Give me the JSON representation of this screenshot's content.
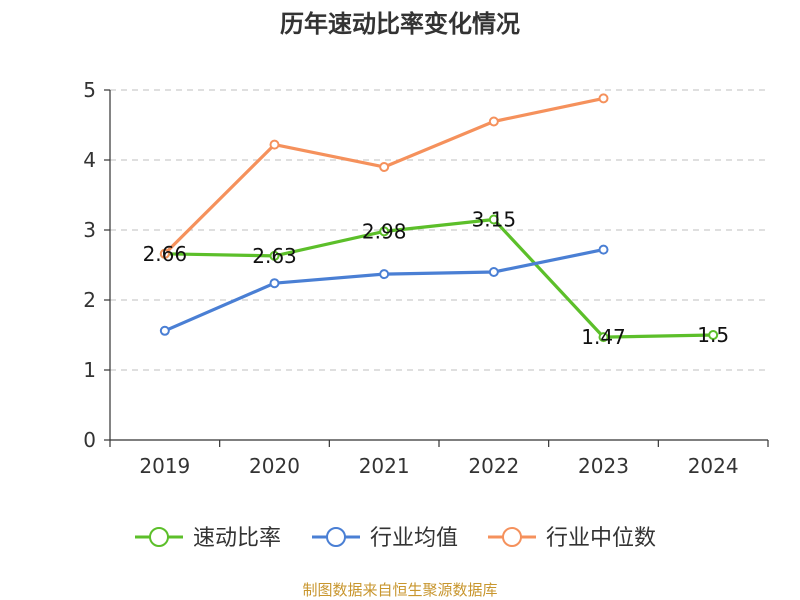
{
  "chart_data": {
    "type": "line",
    "title": "历年速动比率变化情况",
    "categories": [
      "2019",
      "2020",
      "2021",
      "2022",
      "2023",
      "2024"
    ],
    "ylim": [
      0,
      5
    ],
    "yticks": [
      "0",
      "1",
      "2",
      "3",
      "4",
      "5"
    ],
    "grid": true,
    "legend_position": "bottom",
    "series": [
      {
        "name": "速动比率",
        "color": "#5cbf2a",
        "values": [
          2.66,
          2.63,
          2.98,
          3.15,
          1.47,
          1.5
        ],
        "labels": [
          "2.66",
          "2.63",
          "2.98",
          "3.15",
          "1.47",
          "1.5"
        ],
        "show_labels": true
      },
      {
        "name": "行业均值",
        "color": "#4a7fd4",
        "values": [
          1.56,
          2.24,
          2.37,
          2.4,
          2.72,
          null
        ],
        "show_labels": false
      },
      {
        "name": "行业中位数",
        "color": "#f5915c",
        "values": [
          2.66,
          4.22,
          3.9,
          4.55,
          4.88,
          null
        ],
        "show_labels": false
      }
    ]
  },
  "footer": {
    "source": "制图数据来自恒生聚源数据库"
  }
}
